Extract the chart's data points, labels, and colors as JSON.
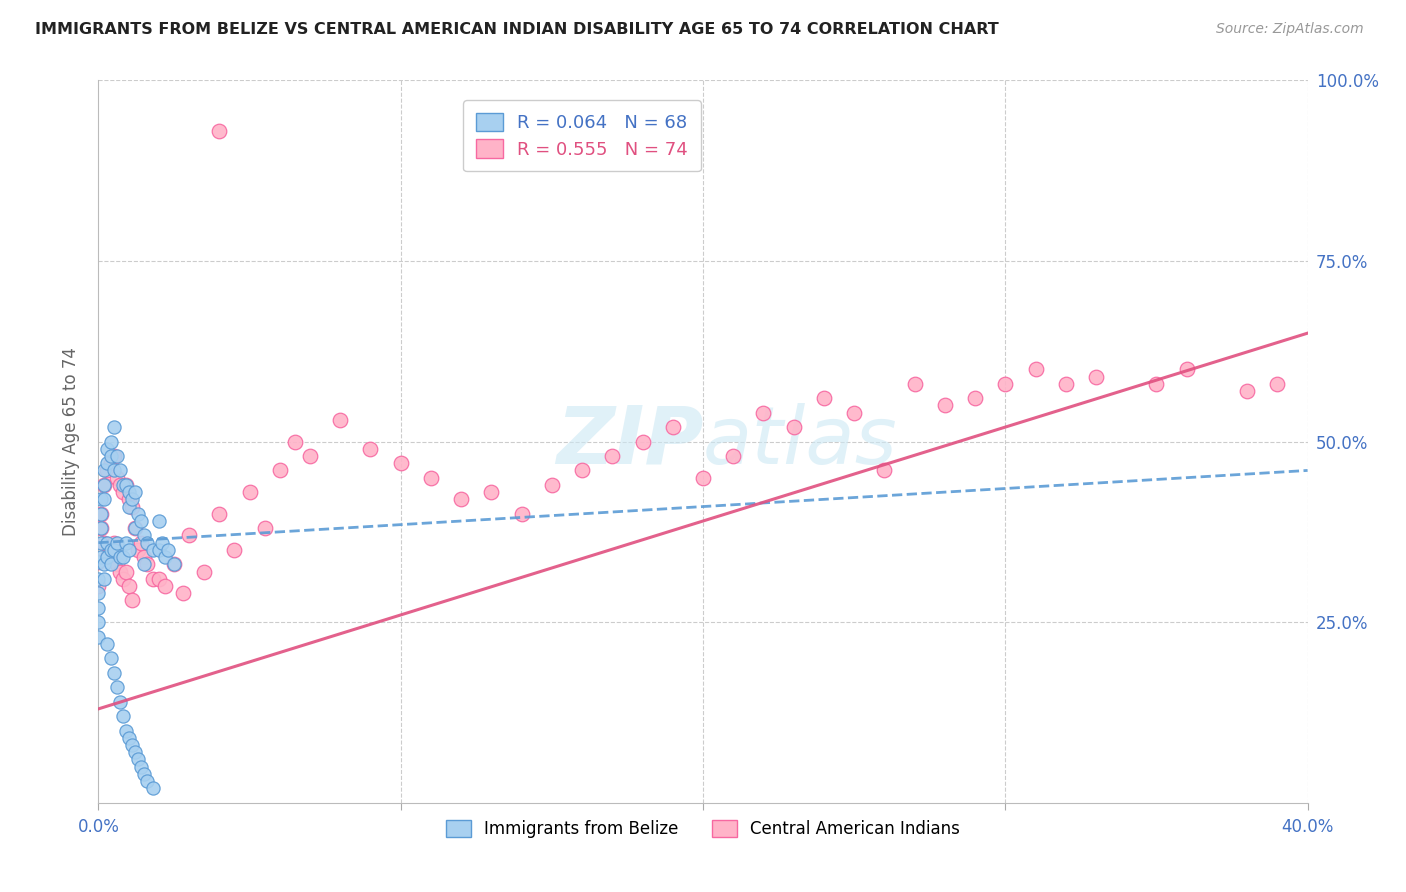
{
  "title": "IMMIGRANTS FROM BELIZE VS CENTRAL AMERICAN INDIAN DISABILITY AGE 65 TO 74 CORRELATION CHART",
  "source": "Source: ZipAtlas.com",
  "ylabel": "Disability Age 65 to 74",
  "xmin": 0.0,
  "xmax": 0.4,
  "ymin": 0.0,
  "ymax": 1.0,
  "belize_color": "#a8d0f0",
  "belize_edge": "#5b9bd5",
  "indian_color": "#ffb3c8",
  "indian_edge": "#f768a1",
  "belize_R": 0.064,
  "belize_N": 68,
  "indian_R": 0.555,
  "indian_N": 74,
  "belize_trend_color": "#5b9bd5",
  "indian_trend_color": "#e05080",
  "watermark_color": "#cce8f4",
  "grid_color": "#cccccc",
  "right_tick_color": "#4472c4",
  "belize_label": "Immigrants from Belize",
  "indian_label": "Central American Indians",
  "belize_scatter_x": [
    0.0,
    0.0,
    0.0,
    0.0,
    0.0,
    0.0,
    0.001,
    0.001,
    0.001,
    0.001,
    0.001,
    0.002,
    0.002,
    0.002,
    0.002,
    0.002,
    0.003,
    0.003,
    0.003,
    0.003,
    0.004,
    0.004,
    0.004,
    0.004,
    0.005,
    0.005,
    0.005,
    0.006,
    0.006,
    0.007,
    0.007,
    0.008,
    0.008,
    0.009,
    0.009,
    0.01,
    0.01,
    0.01,
    0.011,
    0.012,
    0.012,
    0.013,
    0.014,
    0.015,
    0.015,
    0.016,
    0.018,
    0.02,
    0.02,
    0.021,
    0.022,
    0.023,
    0.025,
    0.003,
    0.004,
    0.005,
    0.006,
    0.007,
    0.008,
    0.009,
    0.01,
    0.011,
    0.012,
    0.013,
    0.014,
    0.015,
    0.016,
    0.018
  ],
  "belize_scatter_y": [
    0.333,
    0.31,
    0.29,
    0.27,
    0.25,
    0.23,
    0.42,
    0.4,
    0.38,
    0.36,
    0.34,
    0.46,
    0.44,
    0.42,
    0.33,
    0.31,
    0.49,
    0.47,
    0.36,
    0.34,
    0.5,
    0.48,
    0.35,
    0.33,
    0.52,
    0.46,
    0.35,
    0.48,
    0.36,
    0.46,
    0.34,
    0.44,
    0.34,
    0.44,
    0.36,
    0.43,
    0.41,
    0.35,
    0.42,
    0.43,
    0.38,
    0.4,
    0.39,
    0.37,
    0.33,
    0.36,
    0.35,
    0.39,
    0.35,
    0.36,
    0.34,
    0.35,
    0.33,
    0.22,
    0.2,
    0.18,
    0.16,
    0.14,
    0.12,
    0.1,
    0.09,
    0.08,
    0.07,
    0.06,
    0.05,
    0.04,
    0.03,
    0.02
  ],
  "indian_scatter_x": [
    0.0,
    0.0,
    0.001,
    0.001,
    0.002,
    0.002,
    0.003,
    0.003,
    0.004,
    0.004,
    0.005,
    0.005,
    0.006,
    0.006,
    0.007,
    0.007,
    0.008,
    0.008,
    0.009,
    0.009,
    0.01,
    0.01,
    0.011,
    0.011,
    0.012,
    0.013,
    0.014,
    0.015,
    0.016,
    0.018,
    0.02,
    0.022,
    0.025,
    0.028,
    0.03,
    0.035,
    0.04,
    0.045,
    0.05,
    0.055,
    0.06,
    0.065,
    0.07,
    0.08,
    0.09,
    0.1,
    0.11,
    0.12,
    0.13,
    0.14,
    0.15,
    0.16,
    0.17,
    0.18,
    0.19,
    0.2,
    0.21,
    0.22,
    0.23,
    0.24,
    0.25,
    0.26,
    0.27,
    0.28,
    0.29,
    0.3,
    0.31,
    0.32,
    0.33,
    0.35,
    0.36,
    0.38,
    0.39,
    0.04
  ],
  "indian_scatter_y": [
    0.333,
    0.3,
    0.4,
    0.38,
    0.44,
    0.36,
    0.46,
    0.34,
    0.47,
    0.35,
    0.48,
    0.36,
    0.45,
    0.33,
    0.44,
    0.32,
    0.43,
    0.31,
    0.44,
    0.32,
    0.42,
    0.3,
    0.41,
    0.28,
    0.38,
    0.35,
    0.36,
    0.34,
    0.33,
    0.31,
    0.31,
    0.3,
    0.33,
    0.29,
    0.37,
    0.32,
    0.4,
    0.35,
    0.43,
    0.38,
    0.46,
    0.5,
    0.48,
    0.53,
    0.49,
    0.47,
    0.45,
    0.42,
    0.43,
    0.4,
    0.44,
    0.46,
    0.48,
    0.5,
    0.52,
    0.45,
    0.48,
    0.54,
    0.52,
    0.56,
    0.54,
    0.46,
    0.58,
    0.55,
    0.56,
    0.58,
    0.6,
    0.58,
    0.59,
    0.58,
    0.6,
    0.57,
    0.58,
    0.93
  ],
  "belize_trend_x0": 0.0,
  "belize_trend_x1": 0.4,
  "belize_trend_y0": 0.36,
  "belize_trend_y1": 0.46,
  "indian_trend_x0": 0.0,
  "indian_trend_x1": 0.4,
  "indian_trend_y0": 0.13,
  "indian_trend_y1": 0.65
}
